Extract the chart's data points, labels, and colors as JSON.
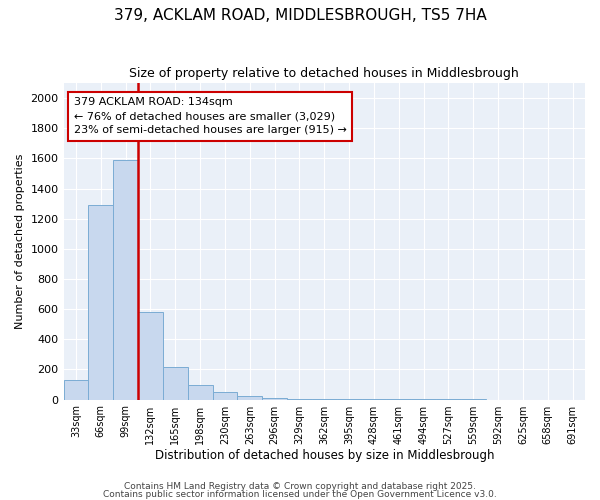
{
  "title": "379, ACKLAM ROAD, MIDDLESBROUGH, TS5 7HA",
  "subtitle": "Size of property relative to detached houses in Middlesbrough",
  "xlabel": "Distribution of detached houses by size in Middlesbrough",
  "ylabel": "Number of detached properties",
  "annotation_line1": "379 ACKLAM ROAD: 134sqm",
  "annotation_line2": "← 76% of detached houses are smaller (3,029)",
  "annotation_line3": "23% of semi-detached houses are larger (915) →",
  "bar_color": "#c8d8ee",
  "bar_edge_color": "#7bacd4",
  "redline_color": "#cc0000",
  "background_color": "#eaf0f8",
  "grid_color": "#ffffff",
  "categories": [
    "33sqm",
    "66sqm",
    "99sqm",
    "132sqm",
    "165sqm",
    "198sqm",
    "230sqm",
    "263sqm",
    "296sqm",
    "329sqm",
    "362sqm",
    "395sqm",
    "428sqm",
    "461sqm",
    "494sqm",
    "527sqm",
    "559sqm",
    "592sqm",
    "625sqm",
    "658sqm",
    "691sqm"
  ],
  "values": [
    130,
    1290,
    1590,
    580,
    215,
    95,
    50,
    25,
    10,
    5,
    3,
    2,
    2,
    1,
    1,
    1,
    1,
    0,
    0,
    0,
    0
  ],
  "ylim": [
    0,
    2100
  ],
  "yticks": [
    0,
    200,
    400,
    600,
    800,
    1000,
    1200,
    1400,
    1600,
    1800,
    2000
  ],
  "red_line_index": 3,
  "footer1": "Contains HM Land Registry data © Crown copyright and database right 2025.",
  "footer2": "Contains public sector information licensed under the Open Government Licence v3.0."
}
